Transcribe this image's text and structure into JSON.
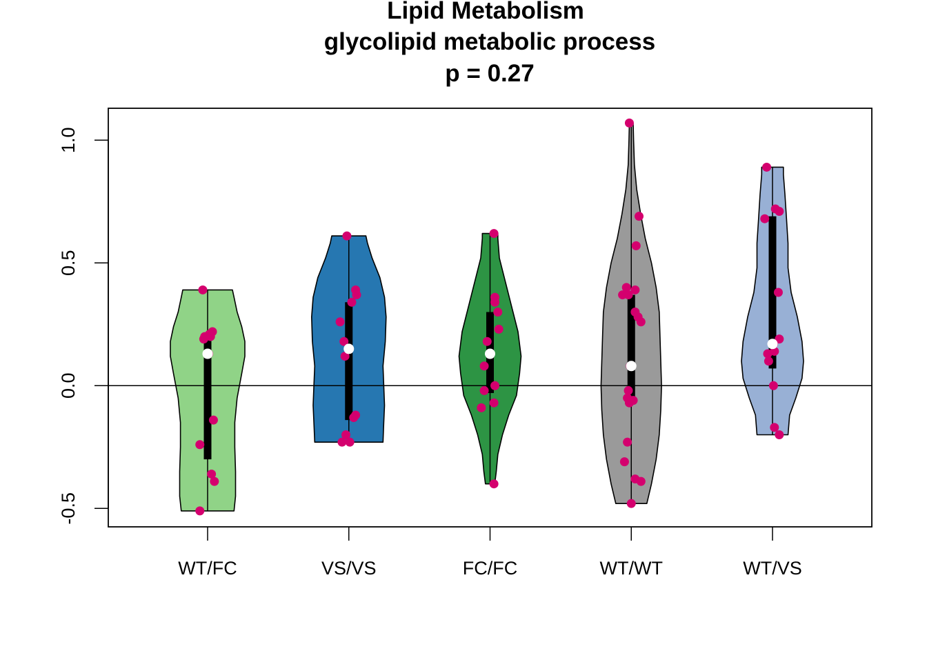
{
  "chart_data": {
    "type": "violin",
    "title": [
      "Lipid Metabolism",
      "glycolipid metabolic process",
      "p = 0.27"
    ],
    "xlabel": "",
    "ylabel": "",
    "ylim": [
      -0.575,
      1.13
    ],
    "yticks": [
      -0.5,
      0.0,
      0.5,
      1.0
    ],
    "ytick_labels": [
      "-0.5",
      "0.0",
      "0.5",
      "1.0"
    ],
    "reference_line": 0.0,
    "point_color": "#d4006e",
    "median_color": "#ffffff",
    "groups": [
      {
        "name": "WT/FC",
        "color": "#90d387",
        "min": -0.51,
        "q1": -0.3,
        "median": 0.13,
        "q3": 0.19,
        "max": 0.39,
        "density": [
          [
            -0.51,
            0.17
          ],
          [
            -0.45,
            0.18
          ],
          [
            -0.35,
            0.18
          ],
          [
            -0.25,
            0.175
          ],
          [
            -0.15,
            0.175
          ],
          [
            -0.05,
            0.19
          ],
          [
            0.05,
            0.22
          ],
          [
            0.12,
            0.24
          ],
          [
            0.18,
            0.24
          ],
          [
            0.24,
            0.22
          ],
          [
            0.3,
            0.19
          ],
          [
            0.36,
            0.17
          ],
          [
            0.39,
            0.16
          ]
        ],
        "points": [
          [
            -0.05,
            0.39
          ],
          [
            0.02,
            0.21
          ],
          [
            -0.03,
            0.2
          ],
          [
            0.03,
            0.2
          ],
          [
            0.05,
            0.22
          ],
          [
            -0.04,
            0.19
          ],
          [
            0.01,
            0.13
          ],
          [
            0.06,
            -0.14
          ],
          [
            -0.08,
            -0.24
          ],
          [
            0.04,
            -0.36
          ],
          [
            0.07,
            -0.39
          ],
          [
            -0.08,
            -0.51
          ]
        ]
      },
      {
        "name": "VS/VS",
        "color": "#2677b1",
        "min": -0.23,
        "q1": -0.14,
        "median": 0.15,
        "q3": 0.34,
        "max": 0.61,
        "density": [
          [
            -0.23,
            0.22
          ],
          [
            -0.15,
            0.225
          ],
          [
            -0.08,
            0.23
          ],
          [
            0.0,
            0.225
          ],
          [
            0.08,
            0.22
          ],
          [
            0.18,
            0.235
          ],
          [
            0.28,
            0.24
          ],
          [
            0.36,
            0.23
          ],
          [
            0.44,
            0.2
          ],
          [
            0.52,
            0.15
          ],
          [
            0.58,
            0.12
          ],
          [
            0.61,
            0.11
          ]
        ],
        "points": [
          [
            -0.02,
            0.61
          ],
          [
            0.07,
            0.39
          ],
          [
            0.08,
            0.37
          ],
          [
            0.03,
            0.34
          ],
          [
            -0.09,
            0.26
          ],
          [
            -0.05,
            0.18
          ],
          [
            -0.04,
            0.12
          ],
          [
            0.07,
            -0.12
          ],
          [
            0.05,
            -0.13
          ],
          [
            -0.03,
            -0.2
          ],
          [
            0.01,
            -0.23
          ],
          [
            -0.07,
            -0.23
          ]
        ]
      },
      {
        "name": "FC/FC",
        "color": "#2d9444",
        "min": -0.4,
        "q1": -0.03,
        "median": 0.13,
        "q3": 0.3,
        "max": 0.62,
        "density": [
          [
            -0.4,
            0.03
          ],
          [
            -0.35,
            0.04
          ],
          [
            -0.28,
            0.05
          ],
          [
            -0.2,
            0.08
          ],
          [
            -0.12,
            0.12
          ],
          [
            -0.04,
            0.17
          ],
          [
            0.05,
            0.19
          ],
          [
            0.12,
            0.2
          ],
          [
            0.22,
            0.18
          ],
          [
            0.32,
            0.14
          ],
          [
            0.42,
            0.1
          ],
          [
            0.52,
            0.06
          ],
          [
            0.6,
            0.05
          ],
          [
            0.62,
            0.05
          ]
        ],
        "points": [
          [
            0.04,
            0.62
          ],
          [
            0.05,
            0.36
          ],
          [
            0.05,
            0.34
          ],
          [
            0.08,
            0.3
          ],
          [
            0.09,
            0.23
          ],
          [
            -0.03,
            0.18
          ],
          [
            -0.06,
            0.08
          ],
          [
            0.05,
            0.0
          ],
          [
            -0.06,
            -0.02
          ],
          [
            0.04,
            -0.07
          ],
          [
            -0.09,
            -0.09
          ],
          [
            0.04,
            -0.4
          ]
        ]
      },
      {
        "name": "WT/WT",
        "color": "#9a9a9a",
        "min": -0.48,
        "q1": -0.05,
        "median": 0.08,
        "q3": 0.37,
        "max": 1.07,
        "density": [
          [
            -0.48,
            0.1
          ],
          [
            -0.4,
            0.13
          ],
          [
            -0.3,
            0.16
          ],
          [
            -0.2,
            0.18
          ],
          [
            -0.1,
            0.19
          ],
          [
            0.0,
            0.195
          ],
          [
            0.1,
            0.19
          ],
          [
            0.2,
            0.185
          ],
          [
            0.3,
            0.18
          ],
          [
            0.4,
            0.16
          ],
          [
            0.5,
            0.13
          ],
          [
            0.6,
            0.09
          ],
          [
            0.7,
            0.06
          ],
          [
            0.8,
            0.035
          ],
          [
            0.9,
            0.02
          ],
          [
            1.0,
            0.015
          ],
          [
            1.07,
            0.012
          ]
        ],
        "points": [
          [
            -0.02,
            1.07
          ],
          [
            0.08,
            0.69
          ],
          [
            0.05,
            0.57
          ],
          [
            -0.05,
            0.4
          ],
          [
            0.04,
            0.39
          ],
          [
            -0.09,
            0.37
          ],
          [
            -0.03,
            0.37
          ],
          [
            0.04,
            0.3
          ],
          [
            0.07,
            0.28
          ],
          [
            0.1,
            0.26
          ],
          [
            -0.01,
            0.08
          ],
          [
            0.0,
            0.08
          ],
          [
            -0.03,
            -0.02
          ],
          [
            -0.04,
            -0.05
          ],
          [
            0.02,
            -0.06
          ],
          [
            -0.02,
            -0.07
          ],
          [
            -0.04,
            -0.23
          ],
          [
            -0.07,
            -0.31
          ],
          [
            0.04,
            -0.38
          ],
          [
            0.1,
            -0.39
          ],
          [
            0.0,
            -0.48
          ]
        ]
      },
      {
        "name": "WT/VS",
        "color": "#98b0d5",
        "min": -0.2,
        "q1": 0.07,
        "median": 0.17,
        "q3": 0.69,
        "max": 0.89,
        "density": [
          [
            -0.2,
            0.1
          ],
          [
            -0.12,
            0.11
          ],
          [
            -0.05,
            0.15
          ],
          [
            0.03,
            0.19
          ],
          [
            0.1,
            0.2
          ],
          [
            0.18,
            0.19
          ],
          [
            0.28,
            0.16
          ],
          [
            0.38,
            0.12
          ],
          [
            0.48,
            0.1
          ],
          [
            0.58,
            0.1
          ],
          [
            0.68,
            0.09
          ],
          [
            0.78,
            0.08
          ],
          [
            0.86,
            0.07
          ],
          [
            0.89,
            0.07
          ]
        ],
        "points": [
          [
            -0.06,
            0.89
          ],
          [
            0.03,
            0.72
          ],
          [
            0.07,
            0.71
          ],
          [
            -0.08,
            0.68
          ],
          [
            0.06,
            0.38
          ],
          [
            0.07,
            0.19
          ],
          [
            0.01,
            0.17
          ],
          [
            -0.05,
            0.13
          ],
          [
            0.02,
            0.14
          ],
          [
            -0.04,
            0.1
          ],
          [
            0.01,
            0.0
          ],
          [
            0.02,
            -0.17
          ],
          [
            0.07,
            -0.2
          ]
        ]
      }
    ]
  }
}
